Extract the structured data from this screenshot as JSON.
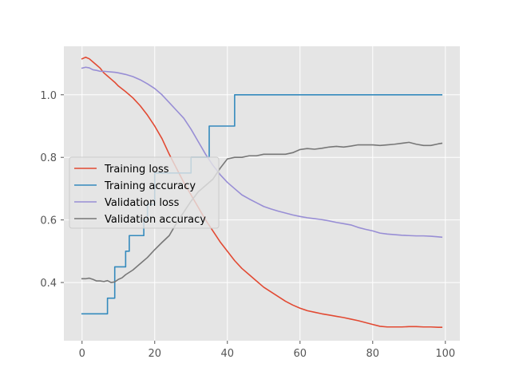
{
  "chart_data": {
    "type": "line",
    "title": "",
    "xlabel": "",
    "ylabel": "",
    "xlim": [
      -5,
      104
    ],
    "ylim": [
      0.214,
      1.155
    ],
    "xticks": [
      0,
      20,
      40,
      60,
      80,
      100
    ],
    "yticks": [
      0.4,
      0.6,
      0.8,
      1.0
    ],
    "xtick_labels": [
      "0",
      "20",
      "40",
      "60",
      "80",
      "100"
    ],
    "ytick_labels": [
      "0.4",
      "0.6",
      "0.8",
      "1.0"
    ],
    "grid": true,
    "legend_position": "center-left",
    "series": [
      {
        "name": "Training loss",
        "color": "#E24A33",
        "x": [
          0,
          1,
          2,
          3,
          4,
          5,
          6,
          7,
          8,
          9,
          10,
          12,
          14,
          16,
          18,
          20,
          22,
          24,
          26,
          28,
          30,
          32,
          34,
          36,
          38,
          40,
          42,
          44,
          46,
          48,
          50,
          52,
          54,
          56,
          58,
          60,
          62,
          64,
          66,
          68,
          70,
          72,
          74,
          76,
          78,
          80,
          82,
          84,
          86,
          88,
          90,
          92,
          94,
          96,
          98,
          99
        ],
        "y": [
          1.115,
          1.12,
          1.115,
          1.105,
          1.095,
          1.085,
          1.07,
          1.06,
          1.05,
          1.04,
          1.028,
          1.01,
          0.99,
          0.965,
          0.935,
          0.9,
          0.86,
          0.81,
          0.765,
          0.72,
          0.68,
          0.64,
          0.6,
          0.565,
          0.53,
          0.5,
          0.47,
          0.445,
          0.425,
          0.405,
          0.385,
          0.37,
          0.355,
          0.34,
          0.328,
          0.318,
          0.31,
          0.305,
          0.3,
          0.296,
          0.292,
          0.288,
          0.283,
          0.278,
          0.272,
          0.266,
          0.26,
          0.258,
          0.258,
          0.258,
          0.259,
          0.259,
          0.258,
          0.258,
          0.257,
          0.257
        ]
      },
      {
        "name": "Training accuracy",
        "color": "#348ABD",
        "x": [
          0,
          7,
          7,
          9,
          9,
          12,
          12,
          13,
          13,
          15,
          15,
          17,
          17,
          18,
          18,
          20,
          20,
          24,
          24,
          30,
          30,
          33,
          33,
          35,
          35,
          40,
          40,
          42,
          42,
          99
        ],
        "y": [
          0.3,
          0.3,
          0.35,
          0.35,
          0.45,
          0.45,
          0.5,
          0.5,
          0.55,
          0.55,
          0.55,
          0.55,
          0.6,
          0.6,
          0.65,
          0.65,
          0.75,
          0.75,
          0.75,
          0.75,
          0.8,
          0.8,
          0.8,
          0.8,
          0.9,
          0.9,
          0.9,
          0.9,
          1.0,
          1.0
        ]
      },
      {
        "name": "Validation loss",
        "color": "#988ED5",
        "x": [
          0,
          1,
          2,
          3,
          4,
          5,
          6,
          7,
          8,
          9,
          10,
          12,
          14,
          16,
          18,
          20,
          22,
          24,
          26,
          28,
          30,
          32,
          34,
          36,
          38,
          40,
          42,
          44,
          46,
          48,
          50,
          52,
          54,
          56,
          58,
          60,
          62,
          64,
          66,
          68,
          70,
          72,
          74,
          76,
          78,
          80,
          82,
          84,
          86,
          88,
          90,
          92,
          94,
          96,
          98,
          99
        ],
        "y": [
          1.085,
          1.088,
          1.086,
          1.08,
          1.078,
          1.075,
          1.075,
          1.074,
          1.073,
          1.072,
          1.07,
          1.065,
          1.058,
          1.048,
          1.035,
          1.02,
          1.0,
          0.975,
          0.95,
          0.925,
          0.89,
          0.85,
          0.81,
          0.775,
          0.745,
          0.72,
          0.7,
          0.68,
          0.667,
          0.655,
          0.643,
          0.635,
          0.628,
          0.622,
          0.616,
          0.611,
          0.607,
          0.604,
          0.601,
          0.597,
          0.592,
          0.588,
          0.584,
          0.576,
          0.57,
          0.565,
          0.558,
          0.555,
          0.553,
          0.551,
          0.55,
          0.549,
          0.549,
          0.548,
          0.546,
          0.545
        ]
      },
      {
        "name": "Validation accuracy",
        "color": "#777777",
        "x": [
          0,
          1,
          2,
          3,
          4,
          5,
          6,
          7,
          8,
          9,
          10,
          11,
          12,
          14,
          16,
          18,
          20,
          22,
          24,
          26,
          28,
          30,
          32,
          34,
          36,
          38,
          40,
          42,
          44,
          46,
          48,
          50,
          52,
          54,
          56,
          58,
          60,
          62,
          64,
          66,
          68,
          70,
          72,
          74,
          76,
          78,
          80,
          82,
          84,
          86,
          88,
          90,
          92,
          94,
          96,
          98,
          99
        ],
        "y": [
          0.412,
          0.412,
          0.414,
          0.41,
          0.405,
          0.405,
          0.403,
          0.406,
          0.4,
          0.402,
          0.41,
          0.415,
          0.425,
          0.44,
          0.46,
          0.48,
          0.505,
          0.528,
          0.55,
          0.59,
          0.625,
          0.66,
          0.69,
          0.71,
          0.73,
          0.765,
          0.795,
          0.8,
          0.8,
          0.805,
          0.805,
          0.81,
          0.81,
          0.81,
          0.81,
          0.815,
          0.825,
          0.828,
          0.826,
          0.829,
          0.833,
          0.835,
          0.833,
          0.836,
          0.84,
          0.84,
          0.84,
          0.838,
          0.84,
          0.842,
          0.845,
          0.848,
          0.842,
          0.838,
          0.838,
          0.843,
          0.845
        ]
      }
    ]
  }
}
